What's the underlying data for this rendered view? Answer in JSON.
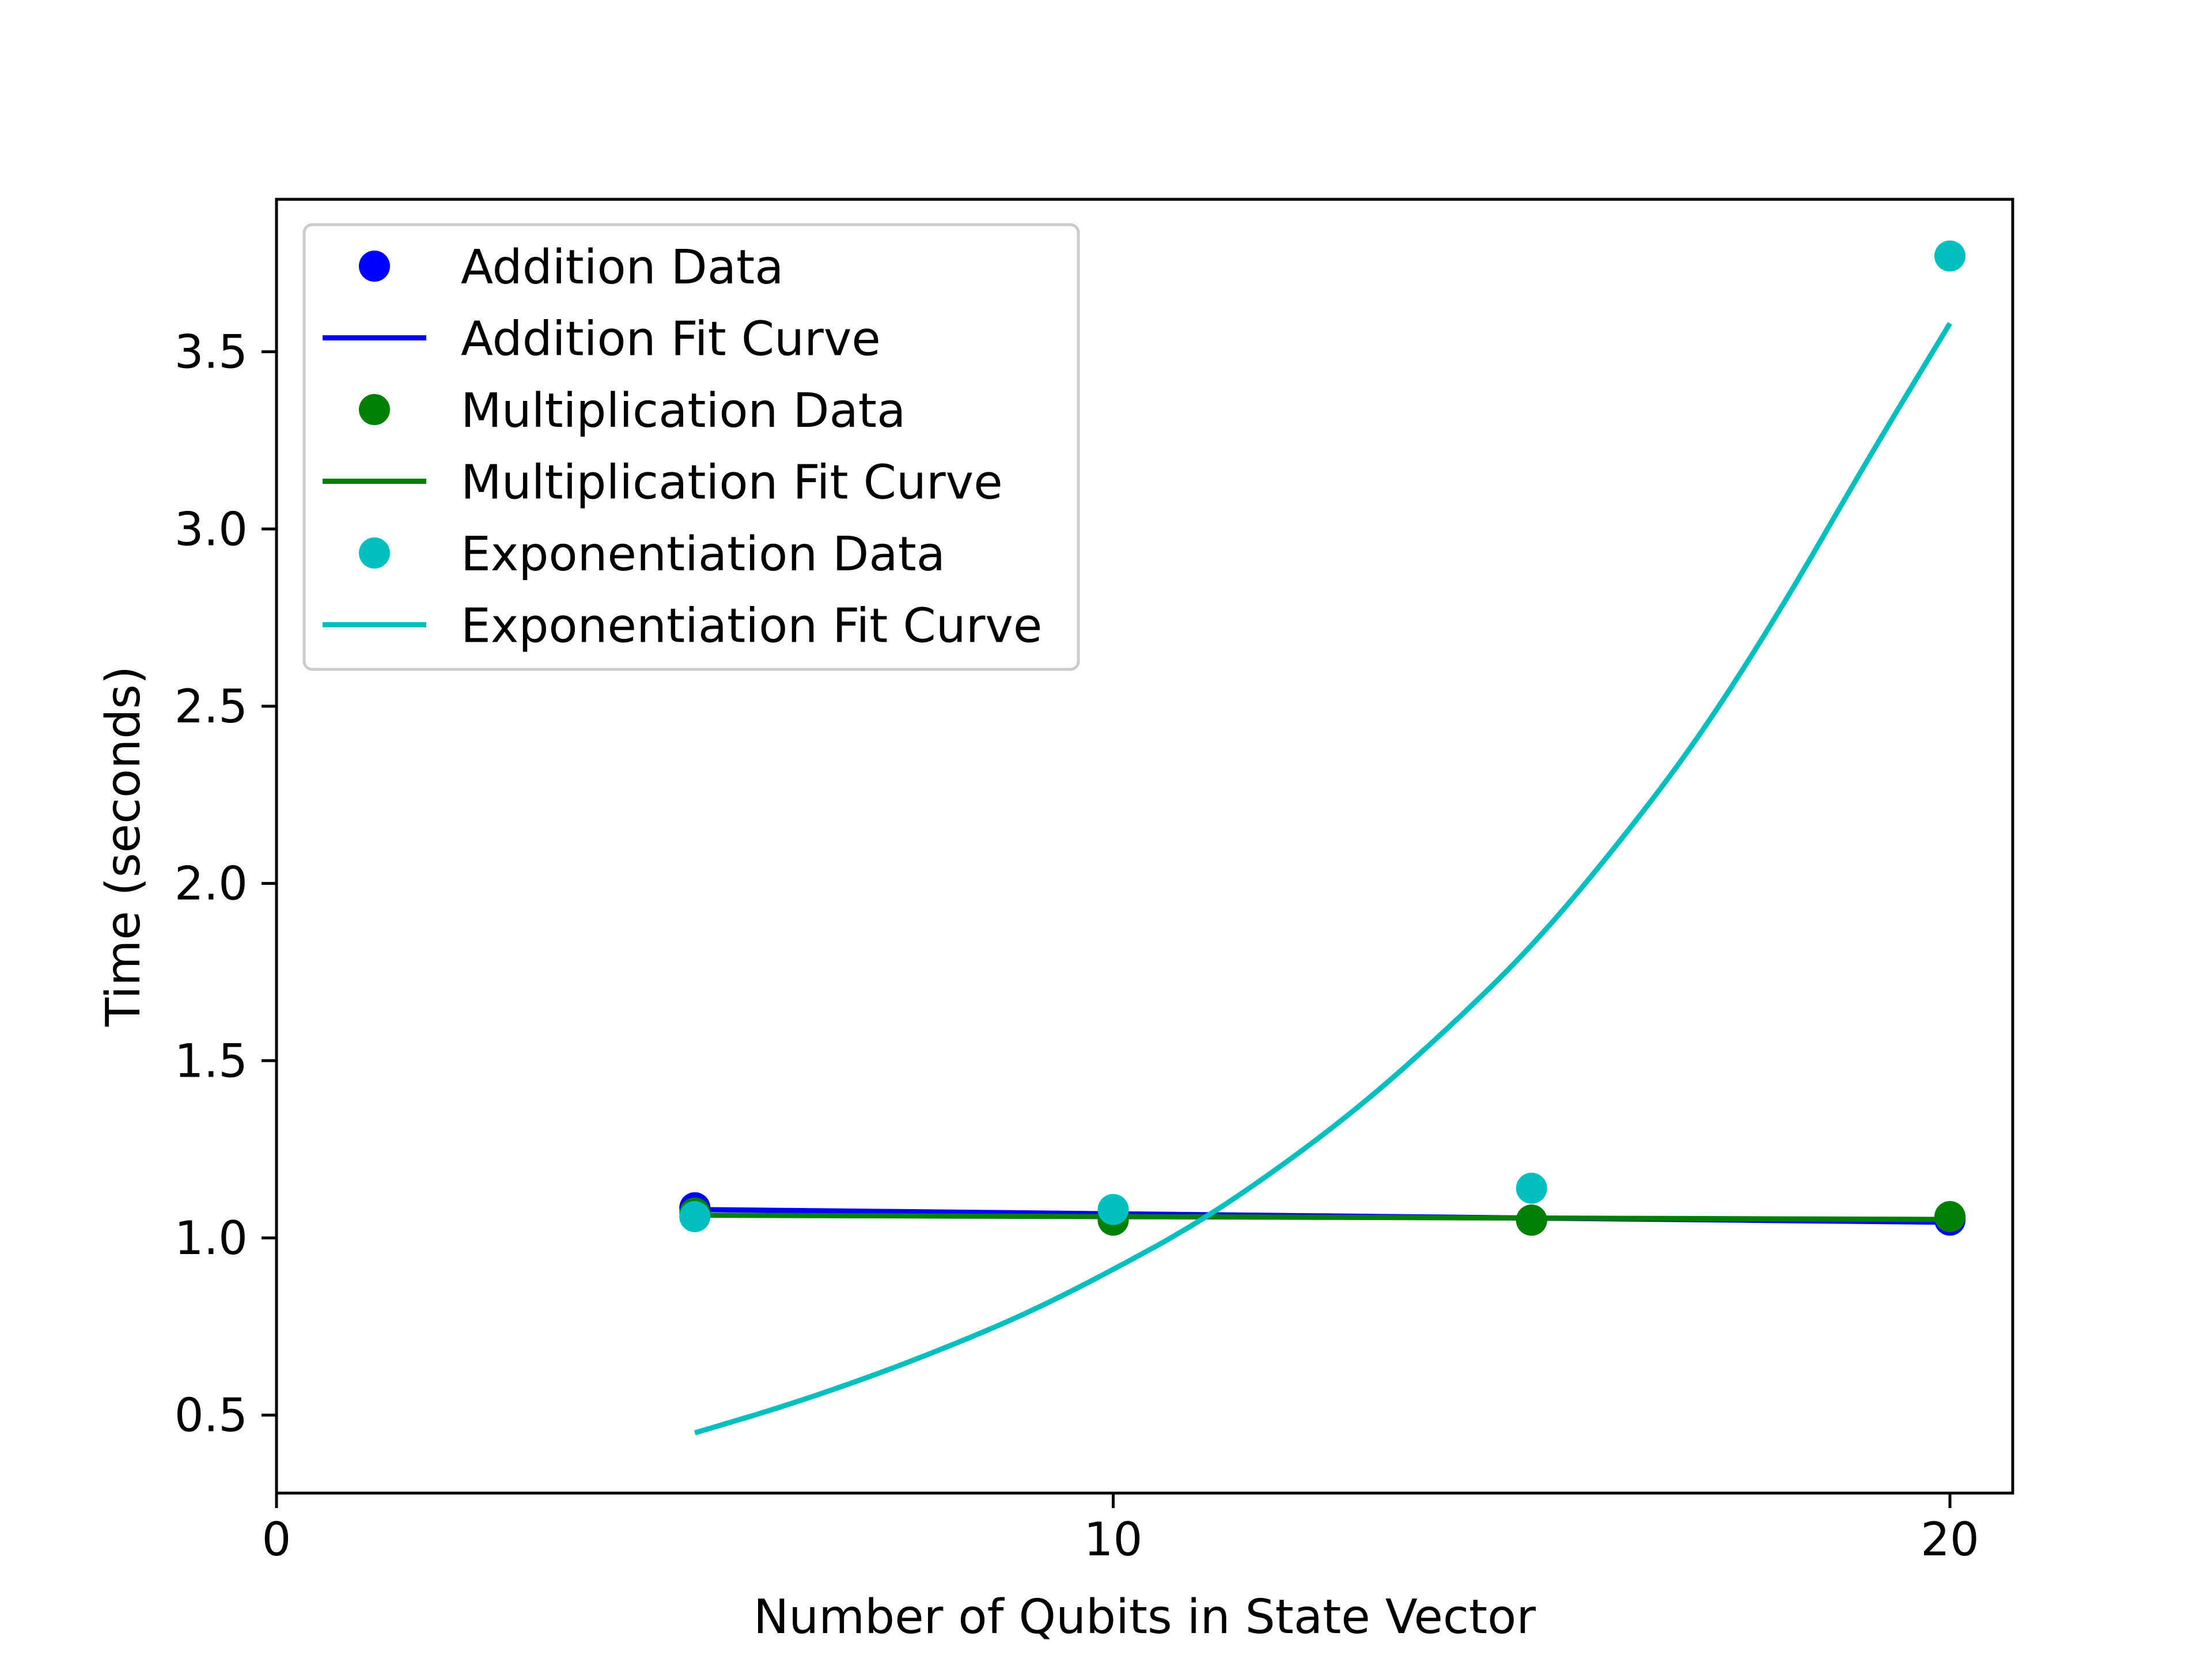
{
  "chart_data": {
    "type": "scatter",
    "title": "",
    "xlabel": "Number of Qubits in State Vector",
    "ylabel": "Time (seconds)",
    "xlim": [
      0,
      20.75
    ],
    "ylim": [
      0.28,
      3.93
    ],
    "xticks": [
      0,
      10,
      20
    ],
    "yticks": [
      0.5,
      1.0,
      1.5,
      2.0,
      2.5,
      3.0,
      3.5
    ],
    "xtick_labels": [
      "0",
      "10",
      "20"
    ],
    "ytick_labels": [
      "0.5",
      "1.0",
      "1.5",
      "2.0",
      "2.5",
      "3.0",
      "3.5"
    ],
    "grid": false,
    "legend_position": "upper-left",
    "series": [
      {
        "name": "Addition Data",
        "kind": "scatter",
        "color": "#0000ff",
        "x": [
          5,
          10,
          15,
          20
        ],
        "y": [
          1.085,
          1.06,
          1.05,
          1.05
        ]
      },
      {
        "name": "Addition Fit Curve",
        "kind": "line",
        "color": "#0000ff",
        "x": [
          5,
          10,
          15,
          20
        ],
        "y": [
          1.08,
          1.068,
          1.056,
          1.044
        ]
      },
      {
        "name": "Multiplication Data",
        "kind": "scatter",
        "color": "#008000",
        "x": [
          5,
          10,
          15,
          20
        ],
        "y": [
          1.07,
          1.05,
          1.05,
          1.06
        ]
      },
      {
        "name": "Multiplication Fit Curve",
        "kind": "line",
        "color": "#008000",
        "x": [
          5,
          10,
          15,
          20
        ],
        "y": [
          1.064,
          1.06,
          1.056,
          1.052
        ]
      },
      {
        "name": "Exponentiation Data",
        "kind": "scatter",
        "color": "#00bfbf",
        "x": [
          5,
          10,
          15,
          20
        ],
        "y": [
          1.06,
          1.08,
          1.14,
          3.77
        ]
      },
      {
        "name": "Exponentiation Fit Curve",
        "kind": "line",
        "color": "#00bfbf",
        "x": [
          5,
          6,
          7,
          8,
          9,
          10,
          11,
          12,
          13,
          14,
          15,
          16,
          17,
          18,
          19,
          20
        ],
        "y": [
          0.45,
          0.52,
          0.6,
          0.69,
          0.79,
          0.91,
          1.04,
          1.2,
          1.38,
          1.59,
          1.82,
          2.1,
          2.41,
          2.78,
          3.19,
          3.58
        ]
      }
    ]
  }
}
